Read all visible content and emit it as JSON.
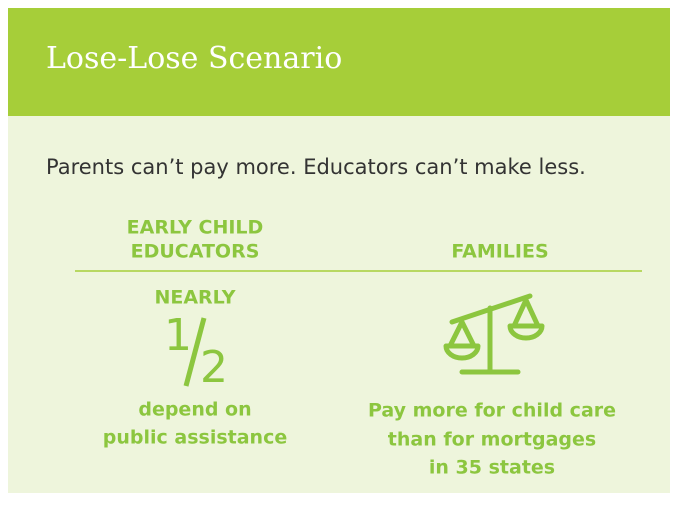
{
  "header": {
    "title": "Lose-Lose Scenario"
  },
  "intro": "Parents can’t pay more. Educators can’t make less.",
  "columns": [
    {
      "heading": [
        "EARLY CHILD",
        "EDUCATORS"
      ],
      "stat_prefix": "NEARLY",
      "numerator": "1",
      "denominator": "2",
      "caption": [
        "depend on",
        "public assistance"
      ]
    },
    {
      "heading": [
        "FAMILIES"
      ],
      "caption": [
        "Pay more for child care",
        "than for mortgages",
        "in 35 states"
      ]
    }
  ]
}
